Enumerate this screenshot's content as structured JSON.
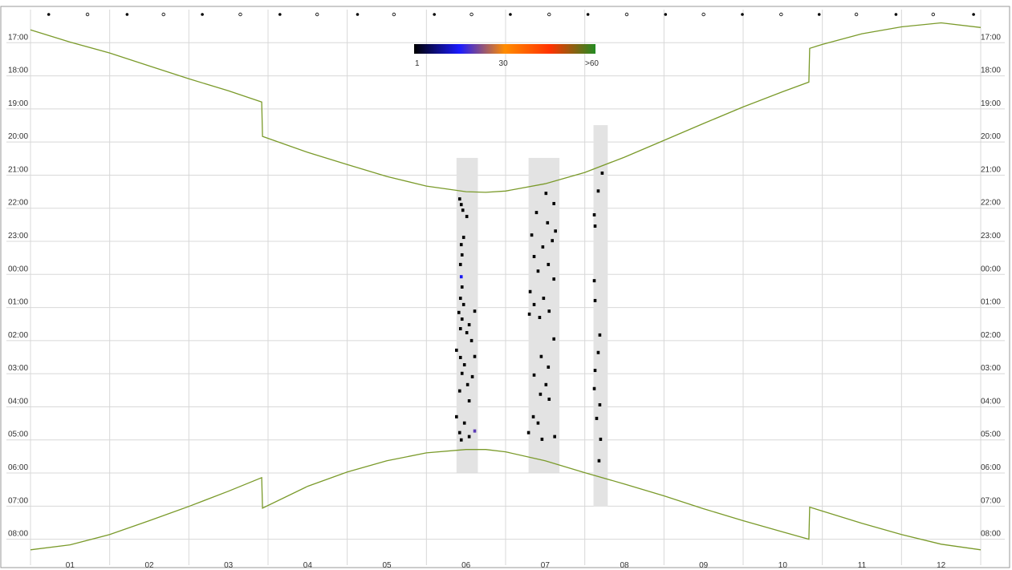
{
  "chart_data": {
    "type": "line",
    "xlim": [
      0,
      12
    ],
    "ylim": [
      15.3,
      -1
    ],
    "xgrid": [
      0,
      1,
      2,
      3,
      4,
      5,
      6,
      7,
      8,
      9,
      10,
      11,
      12
    ],
    "xticks": [
      {
        "value": 0.5,
        "label": "01"
      },
      {
        "value": 1.5,
        "label": "02"
      },
      {
        "value": 2.5,
        "label": "03"
      },
      {
        "value": 3.5,
        "label": "04"
      },
      {
        "value": 4.5,
        "label": "05"
      },
      {
        "value": 5.5,
        "label": "06"
      },
      {
        "value": 6.5,
        "label": "07"
      },
      {
        "value": 7.5,
        "label": "08"
      },
      {
        "value": 8.5,
        "label": "09"
      },
      {
        "value": 9.5,
        "label": "10"
      },
      {
        "value": 10.5,
        "label": "11"
      },
      {
        "value": 11.5,
        "label": "12"
      }
    ],
    "yticks": [
      {
        "value": 0,
        "label": "17:00"
      },
      {
        "value": 1,
        "label": "18:00"
      },
      {
        "value": 2,
        "label": "19:00"
      },
      {
        "value": 3,
        "label": "20:00"
      },
      {
        "value": 4,
        "label": "21:00"
      },
      {
        "value": 5,
        "label": "22:00"
      },
      {
        "value": 6,
        "label": "23:00"
      },
      {
        "value": 7,
        "label": "00:00"
      },
      {
        "value": 8,
        "label": "01:00"
      },
      {
        "value": 9,
        "label": "02:00"
      },
      {
        "value": 10,
        "label": "03:00"
      },
      {
        "value": 11,
        "label": "04:00"
      },
      {
        "value": 12,
        "label": "05:00"
      },
      {
        "value": 13,
        "label": "06:00"
      },
      {
        "value": 14,
        "label": "07:00"
      },
      {
        "value": 15,
        "label": "08:00"
      }
    ],
    "grid": true,
    "series": [
      {
        "color": "#7a9a2a",
        "x": [
          0,
          0.5,
          1,
          1.5,
          2,
          2.5,
          2.92,
          2.93,
          3.5,
          4,
          4.5,
          5,
          5.5,
          5.75,
          6,
          6.5,
          7,
          7.5,
          8,
          8.5,
          9,
          9.5,
          9.83,
          9.84,
          10,
          10.5,
          11,
          11.5,
          12
        ],
        "values": [
          -0.39,
          -0.02,
          0.31,
          0.7,
          1.09,
          1.45,
          1.79,
          2.83,
          3.31,
          3.68,
          4.04,
          4.33,
          4.5,
          4.52,
          4.48,
          4.26,
          3.92,
          3.46,
          2.95,
          2.44,
          1.94,
          1.48,
          1.19,
          0.17,
          0.05,
          -0.27,
          -0.48,
          -0.6,
          -0.46
        ]
      },
      {
        "color": "#7a9a2a",
        "x": [
          0,
          0.5,
          1,
          1.5,
          2,
          2.5,
          2.92,
          2.93,
          3.5,
          4,
          4.5,
          5,
          5.5,
          5.75,
          6,
          6.5,
          7,
          7.5,
          8,
          8.5,
          9,
          9.5,
          9.83,
          9.84,
          10,
          10.5,
          11,
          11.5,
          12
        ],
        "values": [
          15.32,
          15.17,
          14.86,
          14.44,
          14.01,
          13.55,
          13.14,
          14.06,
          13.4,
          12.97,
          12.63,
          12.39,
          12.29,
          12.29,
          12.36,
          12.63,
          12.99,
          13.33,
          13.69,
          14.08,
          14.44,
          14.78,
          15.0,
          14.03,
          14.15,
          14.52,
          14.86,
          15.15,
          15.32
        ]
      }
    ],
    "bands": [
      {
        "x": [
          5.38,
          5.65
        ],
        "y": [
          3.48,
          12.99
        ]
      },
      {
        "x": [
          6.29,
          6.68
        ],
        "y": [
          3.48,
          12.99
        ]
      },
      {
        "x": [
          7.11,
          7.29
        ],
        "y": [
          2.49,
          14.01
        ]
      }
    ],
    "detections": {
      "x": [
        5.42,
        5.44,
        5.46,
        5.51,
        5.47,
        5.44,
        5.45,
        5.43,
        5.44,
        5.45,
        5.43,
        5.47,
        5.41,
        5.61,
        5.45,
        5.54,
        5.43,
        5.51,
        5.57,
        5.38,
        5.43,
        5.61,
        5.48,
        5.45,
        5.58,
        5.52,
        5.42,
        5.54,
        5.38,
        5.48,
        5.42,
        5.61,
        5.44,
        5.54,
        6.51,
        6.61,
        6.39,
        6.53,
        6.63,
        6.33,
        6.59,
        6.47,
        6.36,
        6.54,
        6.41,
        6.61,
        6.31,
        6.48,
        6.36,
        6.55,
        6.43,
        6.3,
        6.61,
        6.45,
        6.54,
        6.36,
        6.51,
        6.44,
        6.55,
        6.35,
        6.41,
        6.29,
        6.46,
        6.62,
        7.22,
        7.17,
        7.12,
        7.13,
        7.12,
        7.13,
        7.19,
        7.17,
        7.13,
        7.12,
        7.19,
        7.15,
        7.2,
        7.18
      ],
      "y": [
        4.72,
        4.89,
        5.06,
        5.25,
        5.88,
        6.1,
        6.41,
        6.7,
        7.07,
        7.38,
        7.72,
        7.91,
        8.15,
        8.11,
        8.35,
        8.52,
        8.64,
        8.76,
        9.0,
        9.29,
        9.51,
        9.48,
        9.73,
        9.99,
        10.09,
        10.33,
        10.52,
        10.82,
        11.3,
        11.49,
        11.78,
        11.73,
        12.0,
        11.9,
        4.55,
        4.86,
        5.13,
        5.44,
        5.69,
        5.81,
        5.98,
        6.17,
        6.46,
        6.7,
        6.9,
        7.14,
        7.52,
        7.72,
        7.91,
        8.11,
        8.3,
        8.2,
        8.95,
        9.48,
        9.8,
        10.04,
        10.33,
        10.62,
        10.77,
        11.3,
        11.49,
        11.78,
        11.98,
        11.9,
        3.94,
        4.48,
        5.2,
        5.54,
        7.19,
        7.79,
        8.83,
        9.36,
        9.9,
        10.45,
        10.94,
        11.35,
        11.98,
        12.63
      ],
      "values": [
        1,
        1,
        1,
        1,
        1,
        1,
        1,
        1,
        15,
        1,
        1,
        1,
        1,
        1,
        1,
        1,
        1,
        1,
        1,
        1,
        1,
        1,
        1,
        1,
        1,
        1,
        1,
        1,
        1,
        1,
        1,
        20,
        1,
        1,
        1,
        1,
        1,
        1,
        1,
        1,
        1,
        1,
        1,
        1,
        1,
        1,
        1,
        1,
        1,
        1,
        1,
        1,
        1,
        1,
        1,
        1,
        1,
        1,
        1,
        1,
        1,
        1,
        1,
        1,
        1,
        1,
        1,
        1,
        1,
        1,
        1,
        1,
        1,
        1,
        1,
        1,
        1,
        1
      ]
    },
    "colorbar": {
      "lim": [
        1,
        60
      ],
      "ticks": [
        1,
        30,
        {
          "value": 60,
          "label": ">60"
        }
      ],
      "colors": [
        "#000000",
        "#1a1aff",
        "#ff8c00",
        "#ff3300",
        "#228b22"
      ]
    },
    "moon_phases": {
      "filled": [
        0.23,
        1.22,
        2.17,
        3.15,
        4.13,
        5.1,
        6.06,
        7.04,
        8.02,
        8.99,
        9.96,
        10.93,
        11.91
      ],
      "open": [
        0.72,
        1.68,
        2.65,
        3.62,
        4.59,
        5.57,
        6.55,
        7.53,
        8.5,
        9.48,
        10.43,
        11.4
      ]
    }
  }
}
